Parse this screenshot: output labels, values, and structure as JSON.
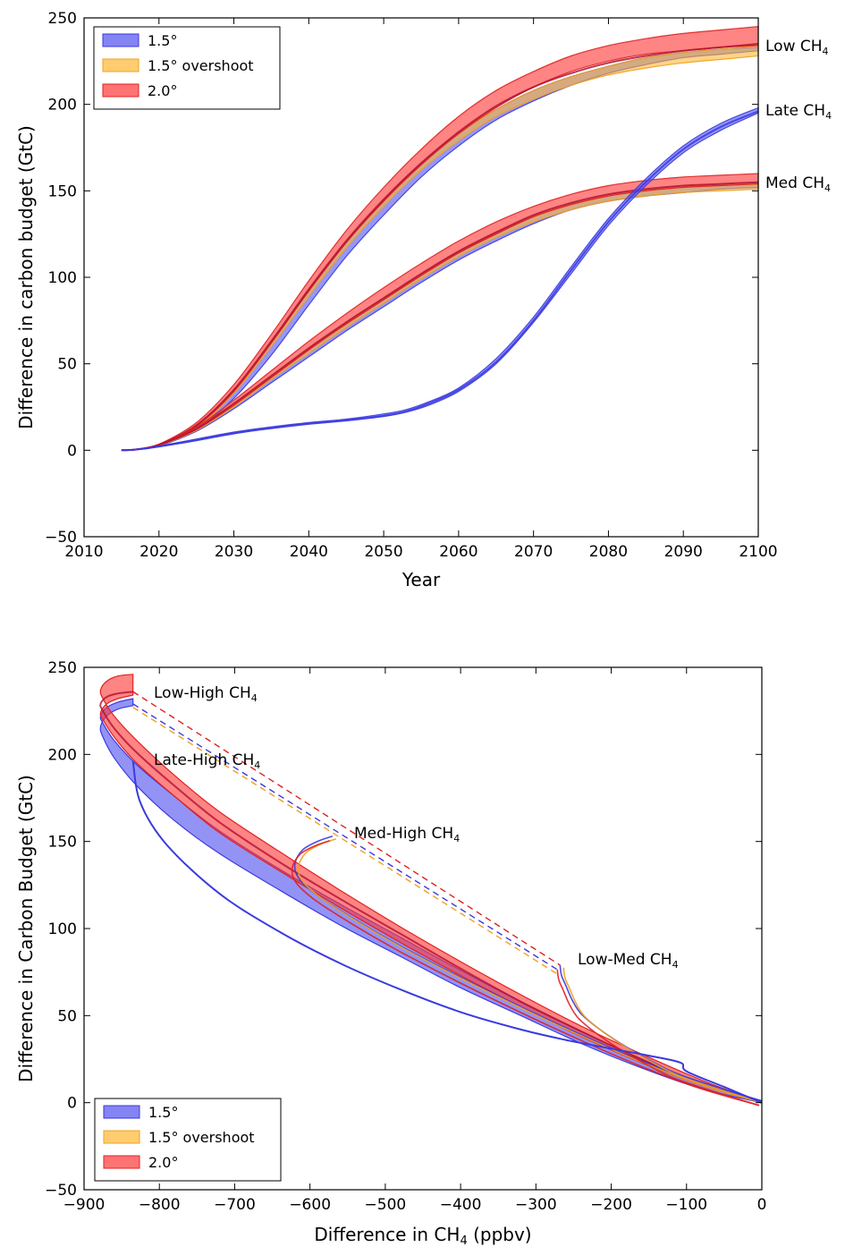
{
  "colors": {
    "s15": "#5050f0",
    "s15o": "#ffb833",
    "s20": "#ff3838",
    "s15_line": "#3a3ae0",
    "s15o_line": "#f0a020",
    "s20_line": "#e02020",
    "overlap_line": "#b01030"
  },
  "legend": [
    "1.5°",
    "1.5° overshoot",
    "2.0°"
  ],
  "chart_data": [
    {
      "type": "area",
      "xlabel": "Year",
      "ylabel": "Difference in carbon budget (GtC)",
      "xlim": [
        2010,
        2100
      ],
      "ylim": [
        -50,
        250
      ],
      "xticks": [
        2010,
        2020,
        2030,
        2040,
        2050,
        2060,
        2070,
        2080,
        2090,
        2100
      ],
      "yticks": [
        -50,
        0,
        50,
        100,
        150,
        200,
        250
      ],
      "legend_position": "top-left",
      "grid": false,
      "annotations": [
        {
          "text": "Low CH",
          "sub": "4"
        },
        {
          "text": "Late CH",
          "sub": "4"
        },
        {
          "text": "Med CH",
          "sub": "4"
        }
      ],
      "curves": [
        {
          "scenario": "Low CH4",
          "x": [
            2015,
            2017,
            2020,
            2025,
            2030,
            2035,
            2040,
            2045,
            2050,
            2055,
            2060,
            2065,
            2070,
            2075,
            2080,
            2085,
            2090,
            2095,
            2100
          ],
          "bands": [
            {
              "series": "1.5°",
              "lower": [
                0,
                0.4,
                2.5,
                12,
                30,
                55,
                84,
                112,
                136,
                158,
                176,
                191,
                202,
                211,
                218,
                223,
                227,
                229,
                231
              ],
              "upper": [
                0,
                0.5,
                3,
                14,
                34,
                62,
                92,
                120,
                144,
                165,
                183,
                197,
                208,
                216,
                222,
                227,
                230,
                232,
                233
              ]
            },
            {
              "series": "1.5° overshoot",
              "lower": [
                0,
                0.4,
                2.8,
                13,
                33,
                60,
                89,
                117,
                141,
                162,
                179,
                193,
                203,
                211,
                217,
                221,
                224,
                226,
                228
              ],
              "upper": [
                0,
                0.5,
                3.2,
                14.5,
                35,
                63,
                93,
                121,
                145,
                166,
                183,
                197,
                208,
                216,
                222,
                227,
                230,
                232,
                234
              ]
            },
            {
              "series": "2.0°",
              "lower": [
                0,
                0.5,
                3,
                14,
                34,
                62,
                92,
                120,
                144,
                165,
                183,
                198,
                210,
                219,
                225,
                229,
                231,
                233,
                234
              ],
              "upper": [
                0,
                0.6,
                3.5,
                16,
                38,
                67,
                98,
                127,
                152,
                174,
                193,
                208,
                219,
                228,
                234,
                238,
                241,
                243,
                245
              ]
            }
          ],
          "mean": [
            0,
            0.5,
            3.1,
            14.5,
            35,
            63,
            93,
            121,
            145,
            166,
            184,
            199,
            210,
            218,
            224,
            228,
            231,
            233,
            235
          ]
        },
        {
          "scenario": "Med CH4",
          "x": [
            2015,
            2017,
            2020,
            2025,
            2030,
            2035,
            2040,
            2045,
            2050,
            2055,
            2060,
            2065,
            2070,
            2075,
            2080,
            2085,
            2090,
            2095,
            2100
          ],
          "bands": [
            {
              "series": "1.5°",
              "lower": [
                0,
                0.4,
                2.5,
                11,
                24,
                39,
                54,
                69,
                83,
                97,
                110,
                121,
                131,
                139,
                144,
                147,
                149,
                151,
                152
              ],
              "upper": [
                0,
                0.5,
                3,
                12,
                26,
                42,
                58,
                73,
                87,
                101,
                114,
                125,
                135,
                142,
                147,
                150,
                152,
                153,
                154
              ]
            },
            {
              "series": "1.5° overshoot",
              "lower": [
                0,
                0.4,
                2.7,
                11.5,
                25,
                41,
                56,
                71,
                85,
                99,
                112,
                123,
                132,
                139,
                144,
                147,
                149,
                150,
                151
              ],
              "upper": [
                0,
                0.5,
                3.2,
                12.5,
                27,
                43,
                59,
                74,
                88,
                102,
                115,
                126,
                135,
                142,
                147,
                150,
                152,
                153,
                154
              ]
            },
            {
              "series": "2.0°",
              "lower": [
                0,
                0.5,
                3,
                12,
                26,
                42,
                58,
                73,
                87,
                101,
                114,
                125,
                135,
                142,
                147,
                150,
                152,
                153,
                154
              ],
              "upper": [
                0,
                0.6,
                3.5,
                13.5,
                29,
                46,
                63,
                79,
                94,
                108,
                121,
                132,
                141,
                148,
                153,
                156,
                158,
                159,
                160
              ]
            }
          ],
          "mean": [
            0,
            0.5,
            3.1,
            12.5,
            27,
            43,
            59,
            74,
            88,
            102,
            115,
            126,
            136,
            143,
            148,
            151,
            153,
            154,
            155
          ]
        },
        {
          "scenario": "Late CH4",
          "x": [
            2015,
            2017,
            2020,
            2025,
            2030,
            2035,
            2040,
            2045,
            2050,
            2053,
            2056,
            2060,
            2065,
            2070,
            2075,
            2080,
            2085,
            2090,
            2095,
            2100
          ],
          "bands": [
            {
              "series": "1.5°",
              "lower": [
                0,
                0.4,
                2,
                5.5,
                9.5,
                12.5,
                15,
                17,
                19.5,
                22,
                26,
                34,
                50,
                74,
                102,
                130,
                153,
                172,
                185,
                195
              ],
              "upper": [
                0,
                0.5,
                2.5,
                6.5,
                10.5,
                13.5,
                16,
                18,
                21,
                23.5,
                28,
                36,
                53,
                77,
                106,
                134,
                157,
                176,
                189,
                198
              ]
            }
          ],
          "mean": [
            0,
            0.45,
            2.2,
            6,
            10,
            13,
            15.5,
            17.5,
            20,
            22.5,
            27,
            35,
            51,
            75,
            104,
            132,
            155,
            174,
            187,
            196
          ]
        }
      ]
    },
    {
      "type": "line",
      "xlabel": "Difference in CH",
      "xlabel_sub": "4",
      "xlabel_unit": "(ppbv)",
      "ylabel": "Difference in Carbon Budget (GtC)",
      "xlim": [
        -900,
        0
      ],
      "ylim": [
        -50,
        250
      ],
      "xticks": [
        -900,
        -800,
        -700,
        -600,
        -500,
        -400,
        -300,
        -200,
        -100,
        0
      ],
      "yticks": [
        -50,
        0,
        50,
        100,
        150,
        200,
        250
      ],
      "legend_position": "bottom-left",
      "grid": false,
      "annotations": [
        {
          "text": "Low-High  CH",
          "sub": "4"
        },
        {
          "text": "Late-High  CH",
          "sub": "4"
        },
        {
          "text": "Med-High CH",
          "sub": "4"
        },
        {
          "text": "Low-Med CH",
          "sub": "4"
        }
      ],
      "curves": [
        {
          "scenario": "Low-High CH4",
          "x": [
            0,
            -80,
            -160,
            -240,
            -320,
            -400,
            -480,
            -560,
            -640,
            -720,
            -780,
            -830,
            -860,
            -875,
            -878,
            -870,
            -855,
            -835
          ],
          "bands": [
            {
              "series": "1.5°",
              "lower": [
                0,
                8,
                20,
                34,
                50,
                66,
                84,
                102,
                122,
                143,
                162,
                182,
                198,
                210,
                216,
                222,
                226,
                228
              ],
              "upper": [
                0,
                11,
                25,
                41,
                58,
                76,
                95,
                114,
                134,
                156,
                176,
                194,
                208,
                218,
                222,
                227,
                230,
                232
              ]
            },
            {
              "series": "2.0°",
              "lower": [
                0,
                10,
                23,
                38,
                55,
                73,
                92,
                112,
                133,
                155,
                176,
                195,
                210,
                220,
                224,
                229,
                232,
                234
              ],
              "upper": [
                0,
                13,
                28,
                44,
                62,
                81,
                101,
                122,
                144,
                167,
                188,
                208,
                222,
                232,
                237,
                242,
                245,
                246
              ]
            }
          ],
          "mean": [
            0,
            11,
            25,
            41,
            58,
            77,
            97,
            117,
            138,
            161,
            182,
            201,
            215,
            225,
            229,
            233,
            235,
            236
          ]
        },
        {
          "scenario": "Med-High CH4",
          "x": [
            0,
            -80,
            -160,
            -240,
            -320,
            -400,
            -480,
            -540,
            -590,
            -615,
            -620,
            -610,
            -590,
            -570
          ],
          "mean": [
            0,
            10,
            23,
            38,
            54,
            71,
            89,
            104,
            118,
            128,
            136,
            144,
            149,
            152
          ]
        },
        {
          "scenario": "Low-Med CH4",
          "x": [
            0,
            -60,
            -120,
            -180,
            -215,
            -240,
            -252,
            -260,
            -266,
            -268
          ],
          "mean": [
            0,
            8,
            17,
            31,
            41,
            50,
            58,
            66,
            72,
            78
          ]
        },
        {
          "scenario": "Late-High CH4",
          "x": [
            0,
            -50,
            -100,
            -108,
            -150,
            -200,
            -260,
            -320,
            -400,
            -480,
            -560,
            -640,
            -720,
            -790,
            -825,
            -835
          ],
          "mean": [
            0,
            9,
            18,
            23,
            27,
            31,
            36,
            42,
            52,
            65,
            80,
            98,
            120,
            148,
            172,
            196
          ]
        }
      ],
      "dashed_links": [
        {
          "from": [
            -835,
            236
          ],
          "to": [
            -268,
            79
          ],
          "series": "2.0°"
        },
        {
          "from": [
            -835,
            229
          ],
          "to": [
            -270,
            76
          ],
          "series": "1.5°"
        },
        {
          "from": [
            -835,
            227
          ],
          "to": [
            -272,
            74
          ],
          "series": "1.5° overshoot"
        }
      ]
    }
  ]
}
